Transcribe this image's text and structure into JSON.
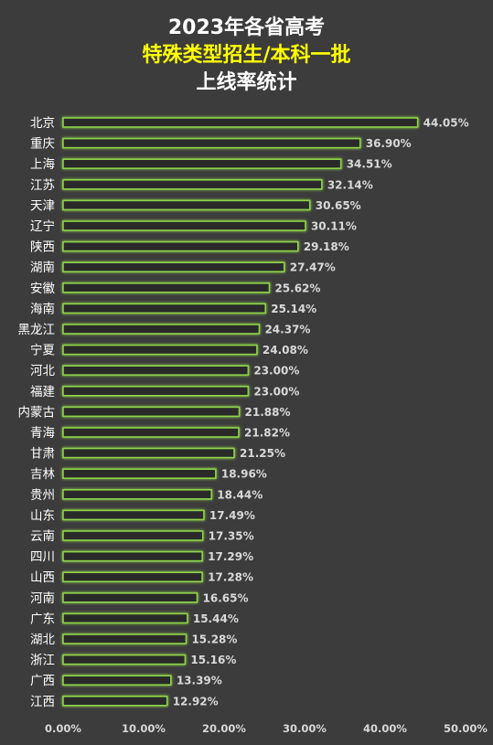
{
  "colors": {
    "background": "#3c3c3c",
    "title_primary": "#ffffff",
    "title_accent": "#ffff00",
    "bar_fill": "#2a2a2a",
    "bar_border": "#8ed34a",
    "text": "#ffffff",
    "axis_text": "#d9d9d9"
  },
  "chart_data": {
    "type": "bar",
    "orientation": "horizontal",
    "title_lines": [
      "2023年各省高考",
      "特殊类型招生/本科一批",
      "上线率统计"
    ],
    "categories": [
      "北京",
      "重庆",
      "上海",
      "江苏",
      "天津",
      "辽宁",
      "陕西",
      "湖南",
      "安徽",
      "海南",
      "黑龙江",
      "宁夏",
      "河北",
      "福建",
      "内蒙古",
      "青海",
      "甘肃",
      "吉林",
      "贵州",
      "山东",
      "云南",
      "四川",
      "山西",
      "河南",
      "广东",
      "湖北",
      "浙江",
      "广西",
      "江西"
    ],
    "values": [
      44.05,
      36.9,
      34.51,
      32.14,
      30.65,
      30.11,
      29.18,
      27.47,
      25.62,
      25.14,
      24.37,
      24.08,
      23.0,
      23.0,
      21.88,
      21.82,
      21.25,
      18.96,
      18.44,
      17.49,
      17.35,
      17.29,
      17.28,
      16.65,
      15.44,
      15.28,
      15.16,
      13.39,
      12.92
    ],
    "value_labels": [
      "44.05%",
      "36.90%",
      "34.51%",
      "32.14%",
      "30.65%",
      "30.11%",
      "29.18%",
      "27.47%",
      "25.62%",
      "25.14%",
      "24.37%",
      "24.08%",
      "23.00%",
      "23.00%",
      "21.88%",
      "21.82%",
      "21.25%",
      "18.96%",
      "18.44%",
      "17.49%",
      "17.35%",
      "17.29%",
      "17.28%",
      "16.65%",
      "15.44%",
      "15.28%",
      "15.16%",
      "13.39%",
      "12.92%"
    ],
    "xlim": [
      0,
      50
    ],
    "xticks": [
      "0.00%",
      "10.00%",
      "20.00%",
      "30.00%",
      "40.00%",
      "50.00%"
    ],
    "grid": false,
    "legend": "none"
  }
}
